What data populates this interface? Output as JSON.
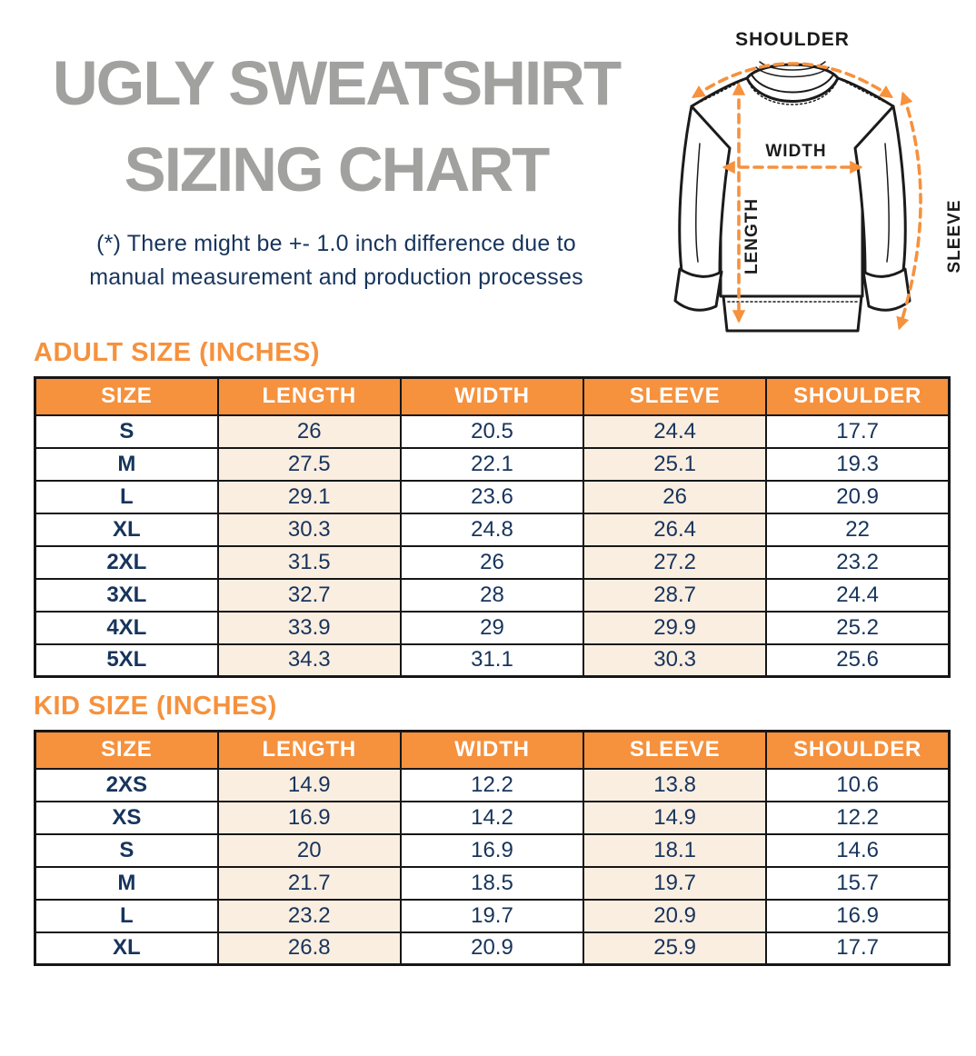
{
  "page": {
    "title_line1": "UGLY SWEATSHIRT",
    "title_line2": "SIZING CHART",
    "disclaimer_line1": "(*) There might be +- 1.0 inch difference due to",
    "disclaimer_line2": "manual measurement and production processes"
  },
  "diagram": {
    "shoulder_label": "SHOULDER",
    "width_label": "WIDTH",
    "length_label": "LENGTH",
    "sleeve_label": "SLEEVE"
  },
  "colors": {
    "accent_orange": "#F6913D",
    "peach_cell": "#FAEEE1",
    "navy_text": "#17345C",
    "title_gray": "#A1A1A0",
    "outline_black": "#161616",
    "header_text": "#FFFFFF"
  },
  "adult_table": {
    "heading": "ADULT SIZE (INCHES)",
    "columns": [
      "SIZE",
      "LENGTH",
      "WIDTH",
      "SLEEVE",
      "SHOULDER"
    ],
    "rows": [
      {
        "size": "S",
        "length": "26",
        "width": "20.5",
        "sleeve": "24.4",
        "shoulder": "17.7"
      },
      {
        "size": "M",
        "length": "27.5",
        "width": "22.1",
        "sleeve": "25.1",
        "shoulder": "19.3"
      },
      {
        "size": "L",
        "length": "29.1",
        "width": "23.6",
        "sleeve": "26",
        "shoulder": "20.9"
      },
      {
        "size": "XL",
        "length": "30.3",
        "width": "24.8",
        "sleeve": "26.4",
        "shoulder": "22"
      },
      {
        "size": "2XL",
        "length": "31.5",
        "width": "26",
        "sleeve": "27.2",
        "shoulder": "23.2"
      },
      {
        "size": "3XL",
        "length": "32.7",
        "width": "28",
        "sleeve": "28.7",
        "shoulder": "24.4"
      },
      {
        "size": "4XL",
        "length": "33.9",
        "width": "29",
        "sleeve": "29.9",
        "shoulder": "25.2"
      },
      {
        "size": "5XL",
        "length": "34.3",
        "width": "31.1",
        "sleeve": "30.3",
        "shoulder": "25.6"
      }
    ]
  },
  "kid_table": {
    "heading": "KID SIZE (INCHES)",
    "columns": [
      "SIZE",
      "LENGTH",
      "WIDTH",
      "SLEEVE",
      "SHOULDER"
    ],
    "rows": [
      {
        "size": "2XS",
        "length": "14.9",
        "width": "12.2",
        "sleeve": "13.8",
        "shoulder": "10.6"
      },
      {
        "size": "XS",
        "length": "16.9",
        "width": "14.2",
        "sleeve": "14.9",
        "shoulder": "12.2"
      },
      {
        "size": "S",
        "length": "20",
        "width": "16.9",
        "sleeve": "18.1",
        "shoulder": "14.6"
      },
      {
        "size": "M",
        "length": "21.7",
        "width": "18.5",
        "sleeve": "19.7",
        "shoulder": "15.7"
      },
      {
        "size": "L",
        "length": "23.2",
        "width": "19.7",
        "sleeve": "20.9",
        "shoulder": "16.9"
      },
      {
        "size": "XL",
        "length": "26.8",
        "width": "20.9",
        "sleeve": "25.9",
        "shoulder": "17.7"
      }
    ]
  }
}
